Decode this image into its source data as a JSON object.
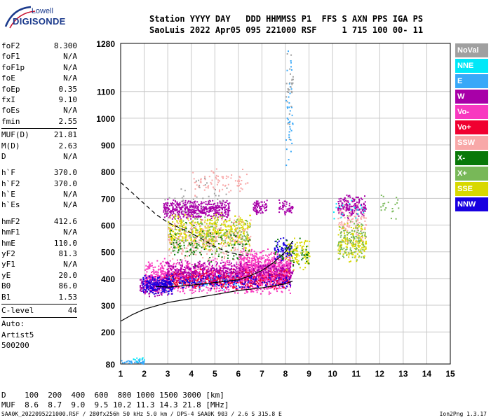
{
  "logo": {
    "line1": "Lowell",
    "line2": "DIGISONDE"
  },
  "header": {
    "row1": "Station YYYY DAY   DDD HHMMSS P1  FFS S AXN PPS IGA PS",
    "row2": "SaoLuis 2022 Apr05 095 221000 RSF     1 715 100 00- 11"
  },
  "params": {
    "group1": [
      {
        "name": "foF2",
        "value": "8.300"
      },
      {
        "name": "foF1",
        "value": "N/A"
      },
      {
        "name": "foF1p",
        "value": "N/A"
      },
      {
        "name": "foE",
        "value": "N/A"
      },
      {
        "name": "foEp",
        "value": "0.35"
      },
      {
        "name": "fxI",
        "value": "9.10"
      },
      {
        "name": "foEs",
        "value": "N/A"
      },
      {
        "name": "fmin",
        "value": "2.55"
      }
    ],
    "group2": [
      {
        "name": "MUF(D)",
        "value": "21.81"
      },
      {
        "name": "M(D)",
        "value": "2.63"
      },
      {
        "name": "D",
        "value": "N/A"
      }
    ],
    "group3": [
      {
        "name": "h`F",
        "value": "370.0"
      },
      {
        "name": "h`F2",
        "value": "370.0"
      },
      {
        "name": "h`E",
        "value": "N/A"
      },
      {
        "name": "h`Es",
        "value": "N/A"
      }
    ],
    "group4": [
      {
        "name": "hmF2",
        "value": "412.6"
      },
      {
        "name": "hmF1",
        "value": "N/A"
      },
      {
        "name": "hmE",
        "value": "110.0"
      },
      {
        "name": "yF2",
        "value": "81.3"
      },
      {
        "name": "yF1",
        "value": "N/A"
      },
      {
        "name": "yE",
        "value": "20.0"
      },
      {
        "name": "B0",
        "value": "86.0"
      },
      {
        "name": "B1",
        "value": "1.53"
      }
    ],
    "clevel": {
      "name": "C-level",
      "value": "44"
    },
    "auto": [
      "Auto:",
      "Artist5",
      "500200"
    ]
  },
  "legend": [
    {
      "label": "NoVal",
      "color": "#a0a0a0"
    },
    {
      "label": "NNE",
      "color": "#00e8f8"
    },
    {
      "label": "E",
      "color": "#38a8f8"
    },
    {
      "label": "W",
      "color": "#a800a8"
    },
    {
      "label": "Vo-",
      "color": "#f838c0"
    },
    {
      "label": "Vo+",
      "color": "#f00030"
    },
    {
      "label": "SSW",
      "color": "#f8a8a8"
    },
    {
      "label": "X-",
      "color": "#087808"
    },
    {
      "label": "X+",
      "color": "#78b858"
    },
    {
      "label": "SSE",
      "color": "#d8d800"
    },
    {
      "label": "NNW",
      "color": "#1800e0"
    }
  ],
  "bottom": {
    "d_row": "D    100  200  400  600  800 1000 1500 3000 [km]",
    "muf_row": "MUF  8.6  8.7  9.0  9.5 10.2 11.3 14.3 21.8 [MHz]"
  },
  "footer": {
    "left": "SAA0K_2022095221000.RSF / 280fx256h 50 kHz 5.0 km / DPS-4 SAA0K 903 / 2.6 S 315.8 E",
    "right": "Ion2Png 1.3.17"
  },
  "chart_data": {
    "type": "scatter",
    "title": "",
    "xlabel": "",
    "ylabel": "",
    "xlim": [
      1,
      15
    ],
    "ylim": [
      80,
      1280
    ],
    "x_ticks": [
      1,
      2,
      3,
      4,
      5,
      6,
      7,
      8,
      9,
      10,
      11,
      12,
      13,
      14,
      15
    ],
    "y_ticks": [
      80,
      200,
      300,
      400,
      500,
      600,
      700,
      800,
      900,
      1000,
      1100,
      1280
    ],
    "grid": true,
    "legend_position": "right",
    "series": [
      {
        "color": "#f838c0",
        "clusters": [
          {
            "x": [
              2.0,
              8.2
            ],
            "y": [
              340,
              480
            ],
            "n": 1400
          },
          {
            "x": [
              6.0,
              8.2
            ],
            "y": [
              380,
              520
            ],
            "n": 500
          }
        ]
      },
      {
        "color": "#f00030",
        "clusters": [
          {
            "x": [
              2.8,
              8.2
            ],
            "y": [
              360,
              440
            ],
            "n": 500
          }
        ]
      },
      {
        "color": "#a800a8",
        "clusters": [
          {
            "x": [
              2.8,
              5.6
            ],
            "y": [
              620,
              700
            ],
            "n": 450
          },
          {
            "x": [
              2.9,
              8.3
            ],
            "y": [
              380,
              470
            ],
            "n": 500
          },
          {
            "x": [
              10.2,
              11.4
            ],
            "y": [
              620,
              720
            ],
            "n": 170
          },
          {
            "x": [
              6.6,
              7.2
            ],
            "y": [
              640,
              700
            ],
            "n": 70
          },
          {
            "x": [
              1.8,
              3.0
            ],
            "y": [
              330,
              420
            ],
            "n": 160
          },
          {
            "x": [
              7.7,
              8.3
            ],
            "y": [
              640,
              700
            ],
            "n": 50
          }
        ]
      },
      {
        "color": "#d8d800",
        "clusters": [
          {
            "x": [
              3.0,
              6.5
            ],
            "y": [
              500,
              650
            ],
            "n": 500
          },
          {
            "x": [
              8.0,
              9.0
            ],
            "y": [
              430,
              560
            ],
            "n": 110
          },
          {
            "x": [
              10.2,
              11.4
            ],
            "y": [
              460,
              620
            ],
            "n": 150
          }
        ]
      },
      {
        "color": "#f8a8a8",
        "clusters": [
          {
            "x": [
              3.0,
              6.5
            ],
            "y": [
              460,
              640
            ],
            "n": 280
          },
          {
            "x": [
              4.0,
              6.5
            ],
            "y": [
              700,
              830
            ],
            "n": 80
          },
          {
            "x": [
              10.2,
              11.4
            ],
            "y": [
              520,
              700
            ],
            "n": 100
          }
        ]
      },
      {
        "color": "#1800e0",
        "clusters": [
          {
            "x": [
              1.9,
              3.2
            ],
            "y": [
              340,
              420
            ],
            "n": 200
          },
          {
            "x": [
              3.0,
              8.2
            ],
            "y": [
              360,
              420
            ],
            "n": 160
          },
          {
            "x": [
              7.5,
              8.3
            ],
            "y": [
              460,
              560
            ],
            "n": 60
          }
        ]
      },
      {
        "color": "#78b858",
        "clusters": [
          {
            "x": [
              3.2,
              6.5
            ],
            "y": [
              480,
              640
            ],
            "n": 160
          },
          {
            "x": [
              10.2,
              11.4
            ],
            "y": [
              460,
              640
            ],
            "n": 110
          },
          {
            "x": [
              12.0,
              12.8
            ],
            "y": [
              620,
              720
            ],
            "n": 20
          }
        ]
      },
      {
        "color": "#087808",
        "clusters": [
          {
            "x": [
              3.0,
              6.5
            ],
            "y": [
              440,
              620
            ],
            "n": 90
          },
          {
            "x": [
              7.5,
              9.0
            ],
            "y": [
              440,
              560
            ],
            "n": 50
          }
        ]
      },
      {
        "color": "#38a8f8",
        "clusters": [
          {
            "x": [
              8.0,
              8.3
            ],
            "y": [
              800,
              1280
            ],
            "n": 40
          },
          {
            "x": [
              1.0,
              2.0
            ],
            "y": [
              80,
              100
            ],
            "n": 35
          },
          {
            "x": [
              3.0,
              6.0
            ],
            "y": [
              350,
              420
            ],
            "n": 40
          }
        ]
      },
      {
        "color": "#00e8f8",
        "clusters": [
          {
            "x": [
              1.5,
              2.0
            ],
            "y": [
              90,
              110
            ],
            "n": 10
          },
          {
            "x": [
              10.0,
              11.4
            ],
            "y": [
              600,
              720
            ],
            "n": 20
          }
        ]
      },
      {
        "color": "#a0a0a0",
        "clusters": [
          {
            "x": [
              8.0,
              8.3
            ],
            "y": [
              900,
              1280
            ],
            "n": 30
          },
          {
            "x": [
              2.8,
              5.5
            ],
            "y": [
              600,
              800
            ],
            "n": 40
          }
        ]
      }
    ],
    "curves": [
      {
        "style": "dashed",
        "x": [
          1.0,
          1.5,
          2.0,
          2.5,
          3.0,
          3.5,
          4.0,
          4.5,
          5.0,
          5.5,
          6.0,
          6.4
        ],
        "y": [
          760,
          720,
          680,
          640,
          610,
          590,
          570,
          545,
          520,
          500,
          490,
          485
        ]
      },
      {
        "style": "solid",
        "x": [
          1.0,
          1.5,
          2.0,
          3.0,
          4.0,
          5.0,
          6.0,
          7.0,
          8.0,
          8.3
        ],
        "y": [
          240,
          265,
          285,
          310,
          325,
          340,
          355,
          365,
          380,
          390
        ]
      },
      {
        "style": "solid",
        "x": [
          2.5,
          3.0,
          4.0,
          5.0,
          6.0,
          6.5,
          7.0,
          7.5,
          8.0,
          8.3
        ],
        "y": [
          370,
          368,
          375,
          385,
          395,
          410,
          430,
          460,
          500,
          540
        ]
      }
    ]
  }
}
